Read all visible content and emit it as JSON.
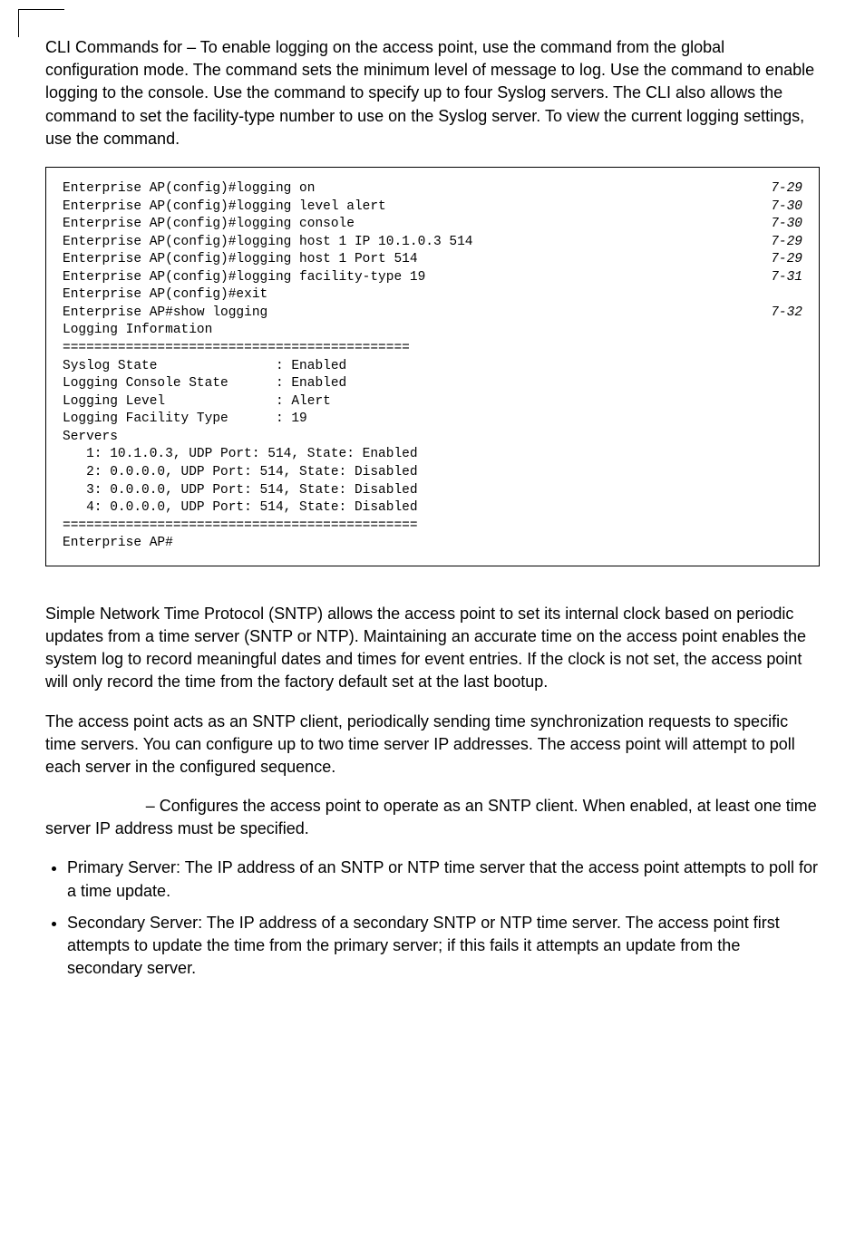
{
  "intro": {
    "cli_prefix": "CLI Commands for ",
    "cli_mid1": " – To enable logging on the access point, use the ",
    "cli_mid2": " command from the global configuration mode. The ",
    "cli_mid3": " command sets the minimum level of message to log. Use the ",
    "cli_mid4": " command to enable logging to the console. Use the ",
    "cli_mid5": " command to specify up to four Syslog servers. The CLI also allows the ",
    "cli_mid6": " command to set the facility-type number to use on the Syslog server. To view the current logging settings, use the ",
    "cli_mid7": " command."
  },
  "code": {
    "lines": [
      {
        "text": "Enterprise AP(config)#logging on",
        "ref": "7-29"
      },
      {
        "text": "Enterprise AP(config)#logging level alert",
        "ref": "7-30"
      },
      {
        "text": "Enterprise AP(config)#logging console",
        "ref": "7-30"
      },
      {
        "text": "Enterprise AP(config)#logging host 1 IP 10.1.0.3 514",
        "ref": "7-29"
      },
      {
        "text": "Enterprise AP(config)#logging host 1 Port 514",
        "ref": "7-29"
      },
      {
        "text": "Enterprise AP(config)#logging facility-type 19",
        "ref": "7-31"
      },
      {
        "text": "Enterprise AP(config)#exit",
        "ref": ""
      },
      {
        "text": "Enterprise AP#show logging",
        "ref": "7-32"
      },
      {
        "text": "",
        "ref": ""
      },
      {
        "text": "Logging Information",
        "ref": ""
      },
      {
        "text": "============================================",
        "ref": ""
      },
      {
        "text": "Syslog State               : Enabled",
        "ref": ""
      },
      {
        "text": "Logging Console State      : Enabled",
        "ref": ""
      },
      {
        "text": "Logging Level              : Alert",
        "ref": ""
      },
      {
        "text": "Logging Facility Type      : 19",
        "ref": ""
      },
      {
        "text": "Servers",
        "ref": ""
      },
      {
        "text": "   1: 10.1.0.3, UDP Port: 514, State: Enabled",
        "ref": ""
      },
      {
        "text": "   2: 0.0.0.0, UDP Port: 514, State: Disabled",
        "ref": ""
      },
      {
        "text": "   3: 0.0.0.0, UDP Port: 514, State: Disabled",
        "ref": ""
      },
      {
        "text": "   4: 0.0.0.0, UDP Port: 514, State: Disabled",
        "ref": ""
      },
      {
        "text": "=============================================",
        "ref": ""
      },
      {
        "text": "",
        "ref": ""
      },
      {
        "text": "Enterprise AP#",
        "ref": ""
      }
    ]
  },
  "sntp": {
    "p1": "Simple Network Time Protocol (SNTP) allows the access point to set its internal clock based on periodic updates from a time server (SNTP or NTP). Maintaining an accurate time on the access point enables the system log to record meaningful dates and times for event entries. If the clock is not set, the access point will only record the time from the factory default set at the last bootup.",
    "p2": "The access point acts as an SNTP client, periodically sending time synchronization requests to specific time servers. You can configure up to two time server IP addresses. The access point will attempt to poll each server in the configured sequence.",
    "p3": " – Configures the access point to operate as an SNTP client. When enabled, at least one time server IP address must be specified.",
    "li1": "Primary Server: The IP address of an SNTP or NTP time server that the access point attempts to poll for a time update.",
    "li2": "Secondary Server: The IP address of a secondary SNTP or NTP time server. The access point first attempts to update the time from the primary server; if this fails it attempts an update from the secondary server."
  }
}
